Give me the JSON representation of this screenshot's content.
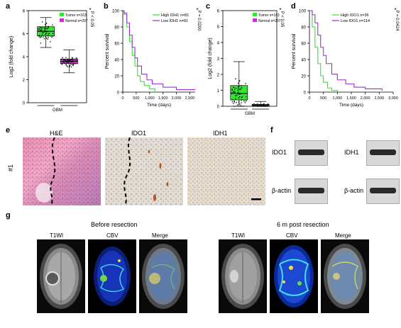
{
  "panels": {
    "a": "a",
    "b": "b",
    "c": "c",
    "d": "d",
    "e": "e",
    "f": "f",
    "g": "g"
  },
  "charts": {
    "a": {
      "ylabel": "Log2 (fold change)",
      "xlabel": "GBM",
      "yticks": [
        "0",
        "2",
        "4",
        "6",
        "8"
      ],
      "legend": [
        {
          "label": "Tumor n=163",
          "color": "#33e633"
        },
        {
          "label": "Normal n=207",
          "color": "#cc33cc"
        }
      ],
      "pval": "P < 0.05",
      "star": "*"
    },
    "b": {
      "ylabel": "Percent survival",
      "xlabel": "Time (days)",
      "yticks": [
        "0",
        "20",
        "40",
        "60",
        "80",
        "100"
      ],
      "xticks": [
        "0",
        "500",
        "1,000",
        "1,500",
        "2,000",
        "2,500"
      ],
      "legend": [
        {
          "label": "High IDH1 n=81",
          "color": "#33e633"
        },
        {
          "label": "Low IDH1 n=81",
          "color": "#9933cc"
        }
      ],
      "pval": "P = 0.0200",
      "star": "*"
    },
    "c": {
      "ylabel": "Log2 (fold change)",
      "xlabel": "GBM",
      "yticks": [
        "0",
        "1",
        "2",
        "3",
        "4",
        "5",
        "6"
      ],
      "legend": [
        {
          "label": "Tumor n=163",
          "color": "#33e633"
        },
        {
          "label": "Normal n=207",
          "color": "#cc33cc"
        }
      ],
      "pval": "P < 0.05",
      "star": "*"
    },
    "d": {
      "ylabel": "Percent survival",
      "xlabel": "Time (days)",
      "yticks": [
        "0",
        "20",
        "40",
        "60",
        "80",
        "100"
      ],
      "xticks": [
        "0",
        "500",
        "1,000",
        "1,500",
        "2,000",
        "2,500",
        "3,000"
      ],
      "legend": [
        {
          "label": "High IDO1 n=36",
          "color": "#33e633"
        },
        {
          "label": "Low IDO1 n=114",
          "color": "#9933cc"
        }
      ],
      "pval": "P = 0.0424",
      "star": "*"
    }
  },
  "chart_data": [
    {
      "type": "box",
      "title": "",
      "xlabel": "GBM",
      "ylabel": "Log2 (fold change)",
      "ylim": [
        0,
        8
      ],
      "series": [
        {
          "name": "Tumor n=163",
          "values": {
            "median": 6.2,
            "q1": 5.8,
            "q3": 6.6,
            "min": 4.8,
            "max": 7.4
          }
        },
        {
          "name": "Normal n=207",
          "values": {
            "median": 3.6,
            "q1": 3.4,
            "q3": 3.8,
            "min": 2.6,
            "max": 4.6
          }
        }
      ]
    },
    {
      "type": "line",
      "title": "",
      "xlabel": "Time (days)",
      "ylabel": "Percent survival",
      "xlim": [
        0,
        2700
      ],
      "ylim": [
        0,
        100
      ],
      "series": [
        {
          "name": "High IDH1 n=81",
          "x": [
            0,
            50,
            150,
            250,
            350,
            450,
            550,
            650,
            800,
            1000,
            1200
          ],
          "y": [
            100,
            95,
            80,
            62,
            45,
            32,
            20,
            13,
            8,
            4,
            0
          ]
        },
        {
          "name": "Low IDH1 n=81",
          "x": [
            0,
            50,
            150,
            250,
            350,
            450,
            550,
            700,
            900,
            1100,
            1500,
            2000,
            2700
          ],
          "y": [
            100,
            97,
            85,
            70,
            55,
            42,
            32,
            22,
            15,
            10,
            6,
            3,
            3
          ]
        }
      ]
    },
    {
      "type": "box",
      "title": "",
      "xlabel": "GBM",
      "ylabel": "Log2 (fold change)",
      "ylim": [
        0,
        6
      ],
      "series": [
        {
          "name": "Tumor n=163",
          "values": {
            "median": 0.8,
            "q1": 0.4,
            "q3": 1.3,
            "min": 0.0,
            "max": 2.8
          }
        },
        {
          "name": "Normal n=207",
          "values": {
            "median": 0.05,
            "q1": 0.0,
            "q3": 0.12,
            "min": 0.0,
            "max": 0.3
          }
        }
      ]
    },
    {
      "type": "line",
      "title": "",
      "xlabel": "Time (days)",
      "ylabel": "Percent survival",
      "xlim": [
        0,
        3000
      ],
      "ylim": [
        0,
        100
      ],
      "series": [
        {
          "name": "High IDO1 n=36",
          "x": [
            0,
            100,
            200,
            300,
            400,
            500,
            650,
            800,
            1000
          ],
          "y": [
            100,
            80,
            55,
            35,
            20,
            12,
            5,
            2,
            0
          ]
        },
        {
          "name": "Low IDO1 n=114",
          "x": [
            0,
            100,
            200,
            300,
            400,
            500,
            600,
            800,
            1000,
            1300,
            1600,
            2000,
            2600
          ],
          "y": [
            100,
            95,
            85,
            70,
            55,
            45,
            35,
            22,
            15,
            10,
            6,
            4,
            2
          ]
        }
      ]
    }
  ],
  "e": {
    "titles": [
      "H&E",
      "IDO1",
      "IDH1"
    ],
    "row": "#1"
  },
  "f": {
    "left_top": "IDO1",
    "left_bot": "β-actin",
    "right_top": "IDH1",
    "right_bot": "β-actin"
  },
  "g": {
    "before": "Before resection",
    "after": "6 m post resection",
    "labels": [
      "T1WI",
      "CBV",
      "Merge",
      "T1WI",
      "CBV",
      "Merge"
    ]
  }
}
